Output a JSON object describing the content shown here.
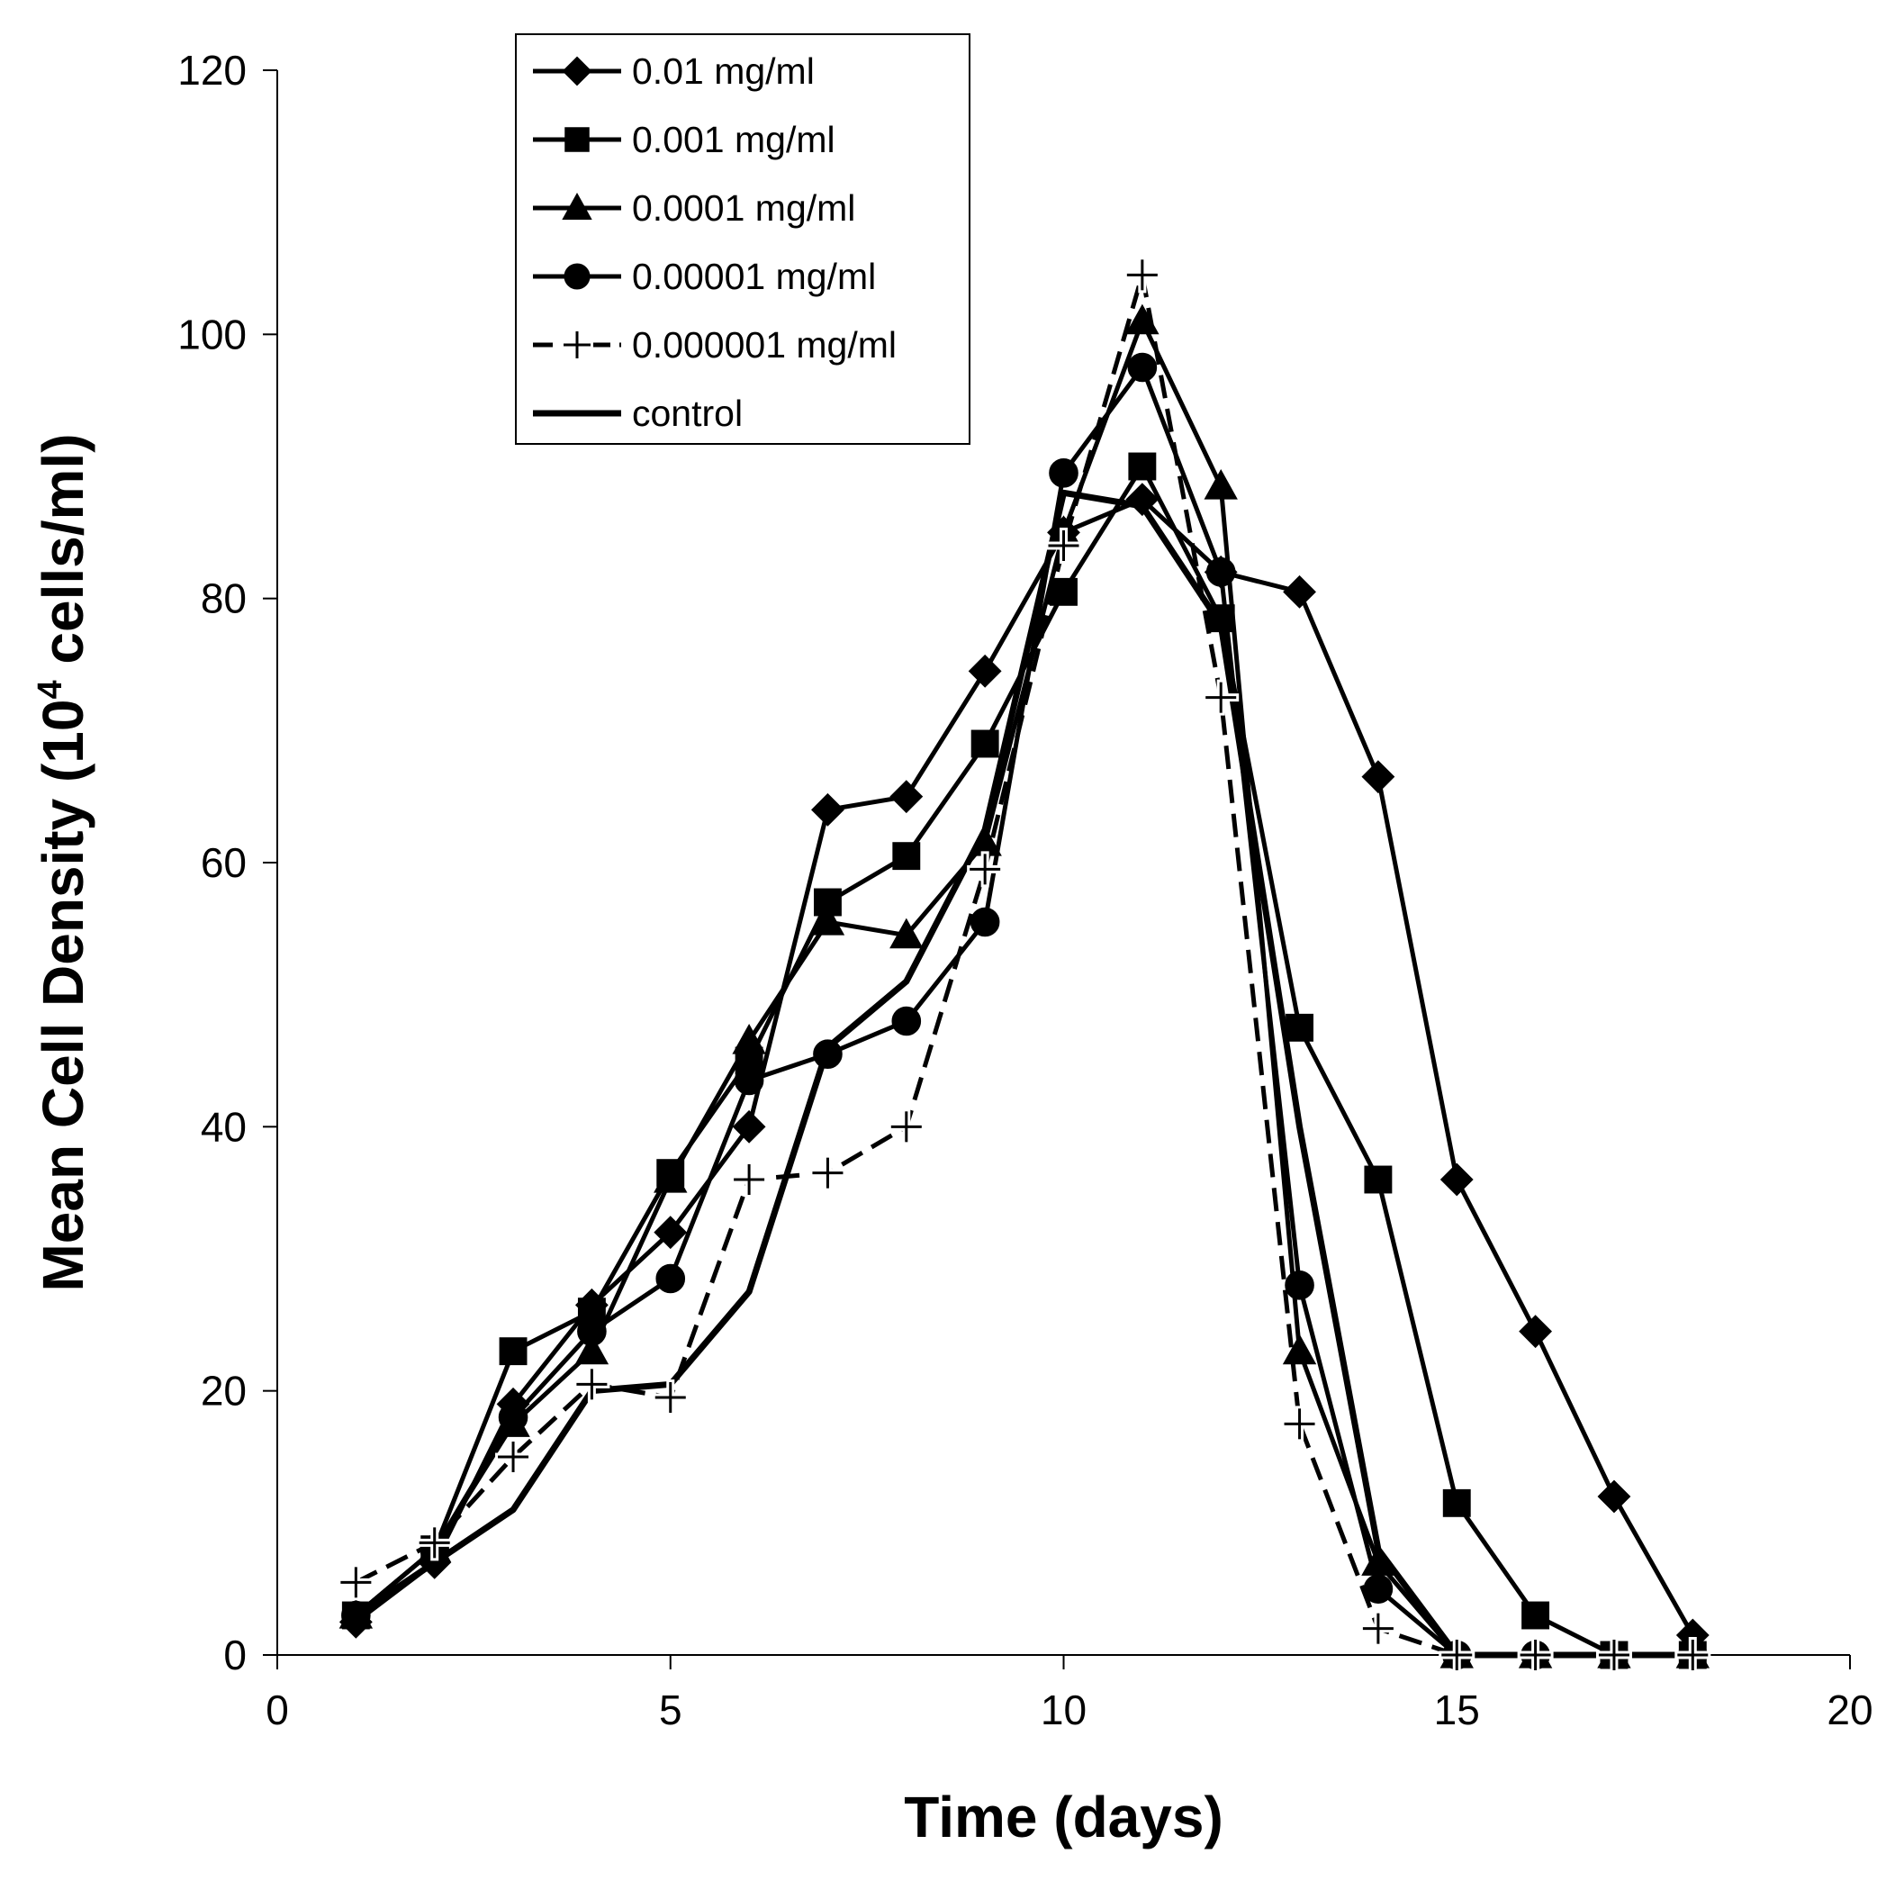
{
  "chart_data": {
    "type": "line",
    "xlabel": "Time (days)",
    "ylabel_main": "Mean Cell Density (10",
    "ylabel_sup": "4",
    "ylabel_tail": " cells/ml)",
    "xlim": [
      0,
      20
    ],
    "ylim": [
      0,
      120
    ],
    "xticks": [
      "0",
      "5",
      "10",
      "15",
      "20"
    ],
    "yticks": [
      "0",
      "20",
      "40",
      "60",
      "80",
      "100",
      "120"
    ],
    "legend_position": "top-left",
    "grid": false,
    "series": [
      {
        "name": "0.01 mg/ml",
        "marker": "diamond",
        "dash": "solid",
        "points": [
          [
            1,
            2.5
          ],
          [
            2,
            7
          ],
          [
            3,
            19
          ],
          [
            4,
            26.5
          ],
          [
            5,
            32
          ],
          [
            6,
            40
          ],
          [
            7,
            64
          ],
          [
            8,
            65
          ],
          [
            9,
            74.5
          ],
          [
            10,
            85
          ],
          [
            11,
            87.5
          ],
          [
            12,
            82
          ],
          [
            13,
            80.5
          ],
          [
            14,
            66.5
          ],
          [
            15,
            36
          ],
          [
            16,
            24.5
          ],
          [
            17,
            12
          ],
          [
            18,
            1.5
          ]
        ]
      },
      {
        "name": "0.001 mg/ml",
        "marker": "square",
        "dash": "solid",
        "points": [
          [
            1,
            3
          ],
          [
            2,
            8
          ],
          [
            3,
            23
          ],
          [
            4,
            26
          ],
          [
            5,
            36.5
          ],
          [
            6,
            45
          ],
          [
            7,
            57
          ],
          [
            8,
            60.5
          ],
          [
            9,
            69
          ],
          [
            10,
            80.5
          ],
          [
            11,
            90
          ],
          [
            12,
            78.5
          ],
          [
            13,
            47.5
          ],
          [
            14,
            36
          ],
          [
            15,
            11.5
          ],
          [
            16,
            3
          ],
          [
            17,
            0
          ],
          [
            18,
            0
          ]
        ]
      },
      {
        "name": "0.0001 mg/ml",
        "marker": "triangle",
        "dash": "solid",
        "points": [
          [
            1,
            3
          ],
          [
            2,
            8
          ],
          [
            3,
            17.5
          ],
          [
            4,
            23
          ],
          [
            5,
            36
          ],
          [
            6,
            46.5
          ],
          [
            7,
            55.5
          ],
          [
            8,
            54.5
          ],
          [
            9,
            61.5
          ],
          [
            10,
            85
          ],
          [
            11,
            101
          ],
          [
            12,
            88.5
          ],
          [
            13,
            23
          ],
          [
            14,
            7
          ],
          [
            15,
            0
          ],
          [
            16,
            0
          ],
          [
            17,
            0
          ],
          [
            18,
            0
          ]
        ]
      },
      {
        "name": "0.00001 mg/ml",
        "marker": "circle",
        "dash": "solid",
        "points": [
          [
            1,
            3
          ],
          [
            2,
            8
          ],
          [
            3,
            18
          ],
          [
            4,
            24.5
          ],
          [
            5,
            28.5
          ],
          [
            6,
            43.5
          ],
          [
            7,
            45.5
          ],
          [
            8,
            48
          ],
          [
            9,
            55.5
          ],
          [
            10,
            89.5
          ],
          [
            11,
            97.5
          ],
          [
            12,
            82
          ],
          [
            13,
            28
          ],
          [
            14,
            5
          ],
          [
            15,
            0
          ],
          [
            16,
            0
          ],
          [
            17,
            0
          ],
          [
            18,
            0
          ]
        ]
      },
      {
        "name": "0.000001 mg/ml",
        "marker": "plus",
        "dash": "dashed",
        "points": [
          [
            1,
            5.5
          ],
          [
            2,
            8.5
          ],
          [
            3,
            15
          ],
          [
            4,
            20.5
          ],
          [
            5,
            19.5
          ],
          [
            6,
            36
          ],
          [
            7,
            36.5
          ],
          [
            8,
            40
          ],
          [
            9,
            59.5
          ],
          [
            10,
            84
          ],
          [
            11,
            104.5
          ],
          [
            12,
            72.5
          ],
          [
            13,
            17.5
          ],
          [
            14,
            2
          ],
          [
            15,
            0
          ],
          [
            16,
            0
          ],
          [
            17,
            0
          ],
          [
            18,
            0
          ]
        ]
      },
      {
        "name": "control",
        "marker": "none",
        "dash": "solid",
        "points": [
          [
            1,
            3
          ],
          [
            2,
            7
          ],
          [
            3,
            11
          ],
          [
            4,
            20
          ],
          [
            5,
            20.5
          ],
          [
            6,
            27.5
          ],
          [
            7,
            46
          ],
          [
            8,
            51
          ],
          [
            9,
            62.5
          ],
          [
            10,
            88
          ],
          [
            11,
            87
          ],
          [
            12,
            78
          ],
          [
            13,
            40
          ],
          [
            14,
            8
          ],
          [
            15,
            0
          ],
          [
            16,
            0
          ],
          [
            17,
            0
          ],
          [
            18,
            0
          ]
        ]
      }
    ]
  }
}
